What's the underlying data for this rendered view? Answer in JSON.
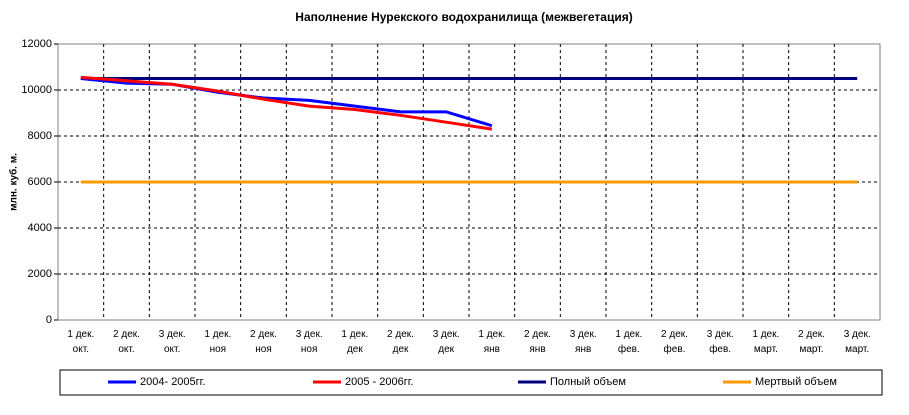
{
  "chart_data": {
    "type": "line",
    "title": "Наполнение Нурекского водохранилища (межвегетация)",
    "y_label": "млн. куб. м.",
    "categories": [
      "1 дек.\nокт.",
      "2 дек.\nокт.",
      "3 дек.\nокт.",
      "1 дек.\nноя",
      "2 дек.\nноя",
      "3 дек.\nноя",
      "1 дек.\nдек",
      "2 дек.\nдек",
      "3 дек.\nдек",
      "1 дек.\nянв",
      "2 дек.\nянв",
      "3 дек.\nянв",
      "1 дек.\nфев.",
      "2 дек.\nфев.",
      "3 дек.\nфев.",
      "1 дек.\nмарт.",
      "2 дек.\nмарт.",
      "3 дек.\nмарт."
    ],
    "series": [
      {
        "name": "2004- 2005гг.",
        "color": "#0000ff",
        "values": [
          10500,
          10300,
          10250,
          9900,
          9650,
          9550,
          9300,
          9050,
          9050,
          8450,
          null,
          null,
          null,
          null,
          null,
          null,
          null,
          null
        ]
      },
      {
        "name": "2005 - 2006гг.",
        "color": "#ff0000",
        "values": [
          10550,
          10400,
          10250,
          9950,
          9600,
          9300,
          9150,
          8900,
          8600,
          8300,
          null,
          null,
          null,
          null,
          null,
          null,
          null,
          null
        ]
      },
      {
        "name": "Полный объем",
        "color": "#000080",
        "values": [
          10500,
          10500,
          10500,
          10500,
          10500,
          10500,
          10500,
          10500,
          10500,
          10500,
          10500,
          10500,
          10500,
          10500,
          10500,
          10500,
          10500,
          10500
        ]
      },
      {
        "name": "Мертвый объем",
        "color": "#ff9900",
        "values": [
          6000,
          6000,
          6000,
          6000,
          6000,
          6000,
          6000,
          6000,
          6000,
          6000,
          6000,
          6000,
          6000,
          6000,
          6000,
          6000,
          6000,
          6000
        ]
      }
    ],
    "ylim": [
      0,
      12000
    ],
    "yticks": [
      0,
      2000,
      4000,
      6000,
      8000,
      10000,
      12000
    ],
    "grid": true,
    "legend": "bottom"
  }
}
